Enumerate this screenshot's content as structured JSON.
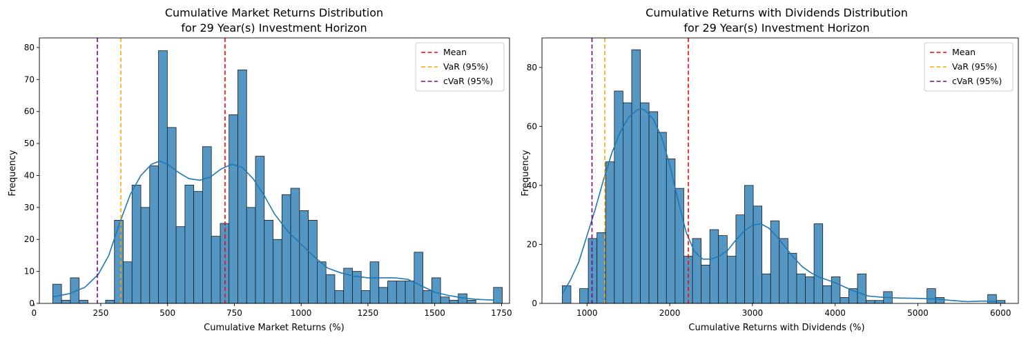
{
  "chart_data": [
    {
      "type": "bar",
      "subtype": "histogram-with-kde",
      "title": "Cumulative Market Returns Distribution",
      "subtitle": "for 29 Year(s) Investment Horizon",
      "xlabel": "Cumulative Market Returns (%)",
      "ylabel": "Frequency",
      "xlim": [
        20,
        1780
      ],
      "ylim": [
        0,
        83
      ],
      "xticks": [
        0,
        250,
        500,
        750,
        1000,
        1250,
        1500,
        1750
      ],
      "yticks": [
        0,
        10,
        20,
        30,
        40,
        50,
        60,
        70,
        80
      ],
      "bin_start": 70,
      "bin_width": 33,
      "counts": [
        6,
        1,
        8,
        1,
        0,
        0,
        1,
        26,
        13,
        37,
        30,
        43,
        79,
        55,
        24,
        37,
        35,
        49,
        21,
        25,
        59,
        73,
        30,
        46,
        26,
        20,
        34,
        36,
        29,
        26,
        13,
        9,
        4,
        11,
        10,
        4,
        13,
        5,
        7,
        7,
        7,
        16,
        4,
        8,
        2,
        1,
        3,
        1,
        0,
        0,
        5
      ],
      "kde": {
        "x": [
          70,
          130,
          190,
          240,
          280,
          320,
          360,
          400,
          440,
          470,
          500,
          540,
          580,
          620,
          660,
          700,
          740,
          780,
          820,
          860,
          900,
          950,
          1000,
          1050,
          1100,
          1150,
          1200,
          1250,
          1300,
          1350,
          1400,
          1450,
          1500,
          1550,
          1600,
          1650,
          1720
        ],
        "y": [
          2,
          3,
          5,
          9,
          15,
          25,
          34,
          40,
          43.5,
          44.5,
          43.5,
          41,
          39,
          38.5,
          39.5,
          42,
          43.5,
          42.5,
          39,
          34,
          28,
          22.5,
          18.5,
          14.5,
          11,
          9.5,
          8.5,
          8,
          8,
          8,
          7.5,
          5.5,
          3.5,
          2.5,
          1.8,
          1.3,
          1
        ]
      },
      "reference_lines": [
        {
          "name": "Mean",
          "x": 715,
          "color": "#ff0000"
        },
        {
          "name": "VaR (95%)",
          "x": 325,
          "color": "#ffa500"
        },
        {
          "name": "cVaR (95%)",
          "x": 237,
          "color": "#800080"
        }
      ],
      "legend_position": "top-right",
      "bar_color": "#5497c5",
      "kde_color": "#1f77b4"
    },
    {
      "type": "bar",
      "subtype": "histogram-with-kde",
      "title": "Cumulative Returns with Dividends Distribution",
      "subtitle": "for 29 Year(s) Investment Horizon",
      "xlabel": "Cumulative Returns with Dividends (%)",
      "ylabel": "Frequency",
      "xlim": [
        455,
        6215
      ],
      "ylim": [
        0,
        90
      ],
      "xticks": [
        1000,
        2000,
        3000,
        4000,
        5000,
        6000
      ],
      "yticks": [
        0,
        20,
        40,
        60,
        80
      ],
      "bin_start": 700,
      "bin_width": 105,
      "counts": [
        6,
        0,
        5,
        22,
        24,
        48,
        72,
        68,
        86,
        68,
        65,
        58,
        49,
        39,
        16,
        22,
        13,
        25,
        23,
        16,
        30,
        40,
        33,
        10,
        28,
        22,
        17,
        10,
        9,
        27,
        6,
        9,
        2,
        5,
        10,
        1,
        1,
        4,
        0,
        0,
        0,
        0,
        5,
        2,
        0,
        0,
        0,
        0,
        0,
        3,
        1
      ],
      "kde": {
        "x": [
          700,
          800,
          900,
          1000,
          1100,
          1200,
          1300,
          1400,
          1500,
          1600,
          1650,
          1700,
          1800,
          1900,
          2000,
          2100,
          2200,
          2300,
          2400,
          2500,
          2600,
          2700,
          2800,
          2900,
          3000,
          3100,
          3200,
          3300,
          3400,
          3500,
          3600,
          3700,
          3800,
          3900,
          4000,
          4200,
          4400,
          4600,
          4800,
          5000,
          5200,
          5400,
          5600,
          5800,
          5950
        ],
        "y": [
          3,
          8,
          14,
          23,
          32,
          42,
          51,
          58,
          63,
          65.5,
          66,
          65.5,
          62.5,
          56.5,
          47,
          35,
          24,
          17.5,
          15,
          15,
          16,
          18,
          21.5,
          24.5,
          26.5,
          27,
          25.5,
          22.5,
          19,
          15.5,
          12.5,
          10.5,
          9,
          8,
          7,
          4.5,
          2.5,
          2,
          1.8,
          1.7,
          1.5,
          1,
          0.6,
          0.8,
          0.6
        ]
      },
      "reference_lines": [
        {
          "name": "Mean",
          "x": 2225,
          "color": "#ff0000"
        },
        {
          "name": "VaR (95%)",
          "x": 1215,
          "color": "#ffa500"
        },
        {
          "name": "cVaR (95%)",
          "x": 1060,
          "color": "#800080"
        }
      ],
      "legend_position": "top-right",
      "bar_color": "#5497c5",
      "kde_color": "#1f77b4"
    }
  ]
}
